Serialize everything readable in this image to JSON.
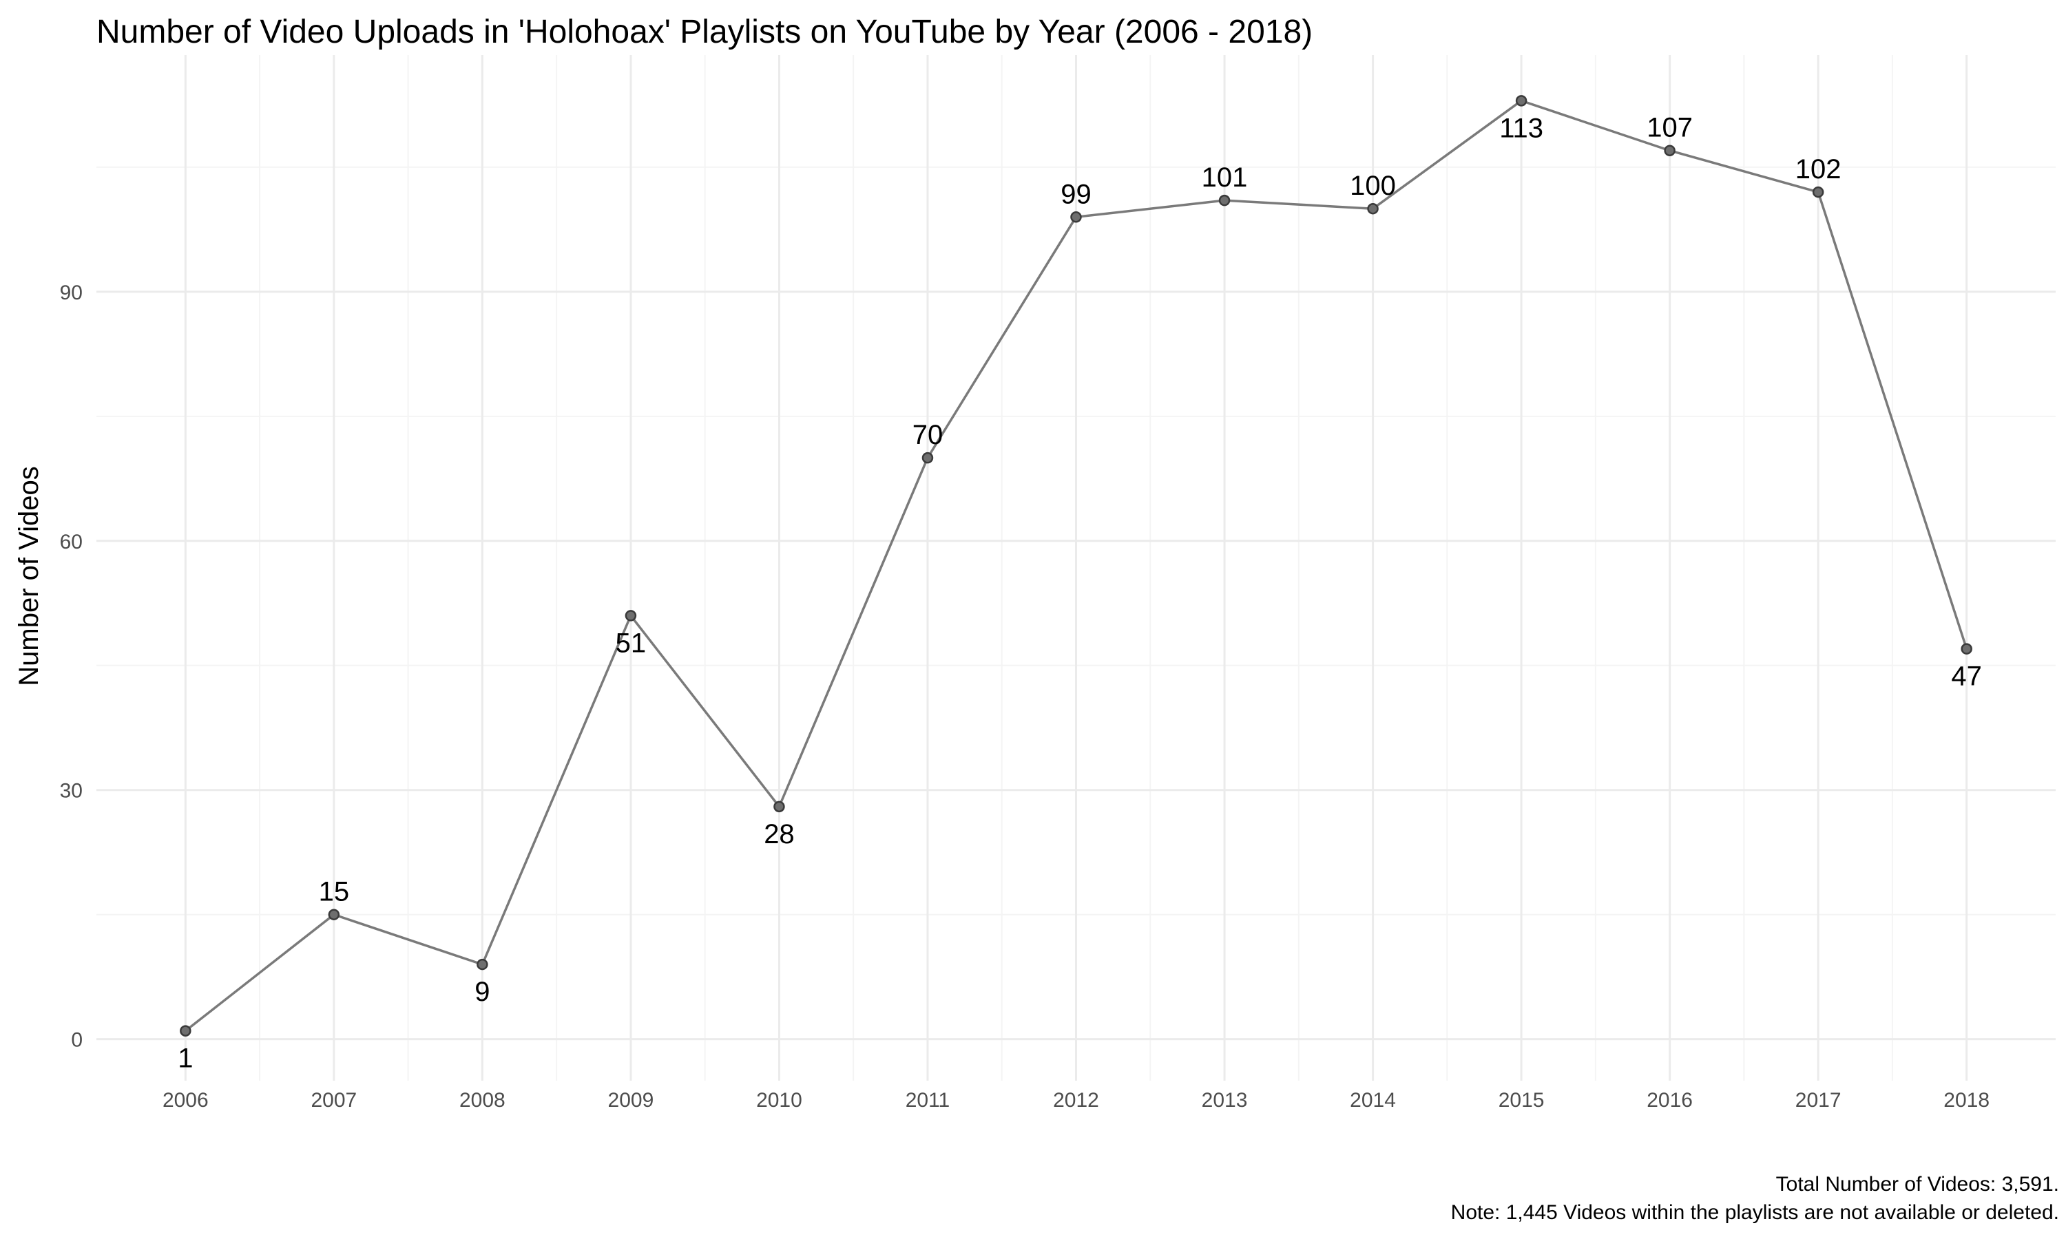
{
  "chart_data": {
    "type": "line",
    "title": "Number of Video Uploads in 'Holohoax' Playlists on YouTube by Year (2006 - 2018)",
    "xlabel": "",
    "ylabel": "Number of Videos",
    "x": [
      "2006",
      "2007",
      "2008",
      "2009",
      "2010",
      "2011",
      "2012",
      "2013",
      "2014",
      "2015",
      "2016",
      "2017",
      "2018"
    ],
    "series": [
      {
        "values": [
          1,
          15,
          9,
          51,
          28,
          70,
          99,
          101,
          100,
          113,
          107,
          102,
          47
        ],
        "labels": [
          "1",
          "15",
          "9",
          "51",
          "28",
          "70",
          "99",
          "101",
          "100",
          "113",
          "107",
          "102",
          "47"
        ],
        "label_positions": [
          "below",
          "above",
          "below",
          "below",
          "below",
          "above",
          "above",
          "above",
          "above",
          "below",
          "above",
          "above",
          "below"
        ]
      }
    ],
    "yticks": [
      "0",
      "30",
      "60",
      "90"
    ],
    "ytick_values": [
      0,
      30,
      60,
      90
    ],
    "ylim": [
      -5,
      118.5
    ],
    "xlim": [
      2005.4,
      2018.6
    ],
    "grid": true,
    "legend": "none",
    "caption": [
      "Total Number of Videos: 3,591.",
      "Note: 1,445 Videos within the playlists are not available or deleted."
    ],
    "colors": {
      "line": "#7a7a7a",
      "point": "#6e6e6e",
      "grid": "#ebebeb"
    }
  }
}
